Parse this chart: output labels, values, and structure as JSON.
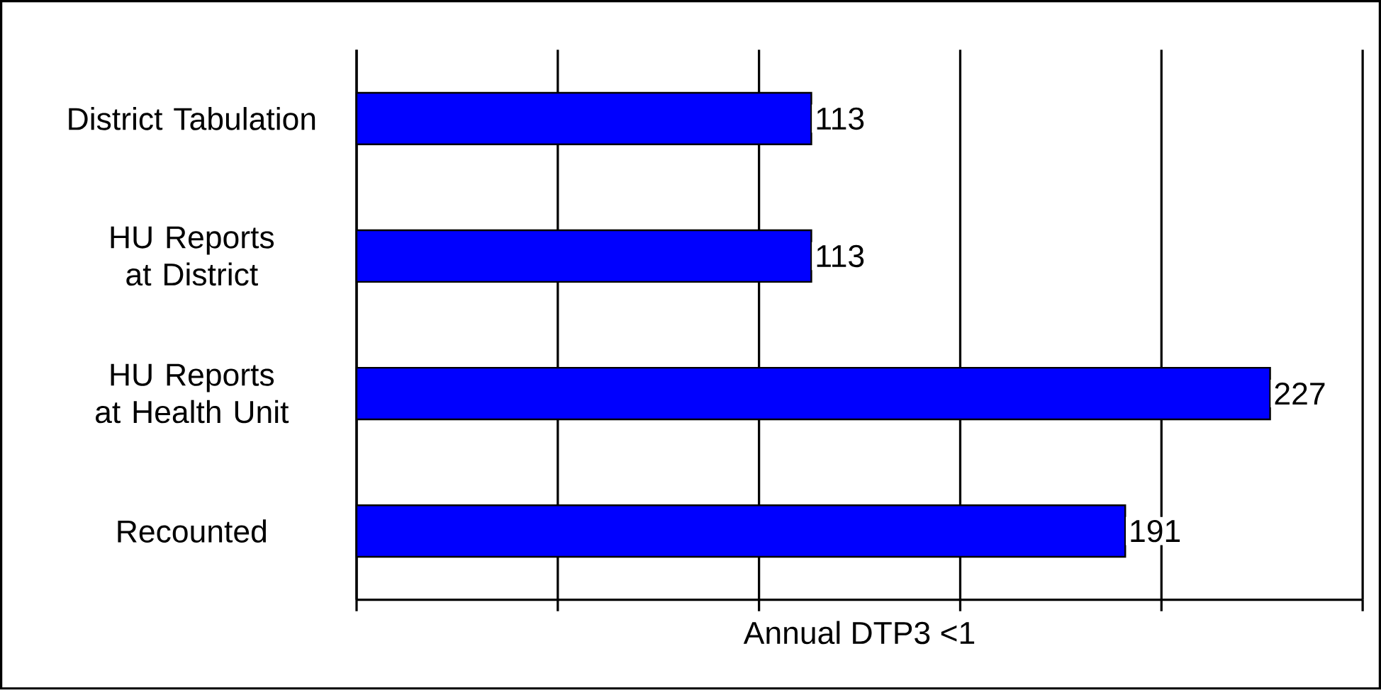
{
  "chart_data": {
    "type": "bar",
    "orientation": "horizontal",
    "xlabel": "Annual DTP3 <1",
    "categories": [
      "District Tabulation",
      "HU Reports at District",
      "HU Reports at Health Unit",
      "Recounted"
    ],
    "values": [
      113,
      113,
      227,
      191
    ],
    "color": "#0000ff",
    "xlim": [
      0,
      250
    ],
    "xticks": [
      {
        "value": 0,
        "label": null
      },
      {
        "value": 50,
        "label": null
      },
      {
        "value": 100,
        "label": null
      },
      {
        "value": 150,
        "label": null
      },
      {
        "value": 200,
        "label": null
      },
      {
        "value": 250,
        "label": null
      }
    ],
    "grid": "x",
    "tick_labels": "y",
    "data_labels": true
  }
}
